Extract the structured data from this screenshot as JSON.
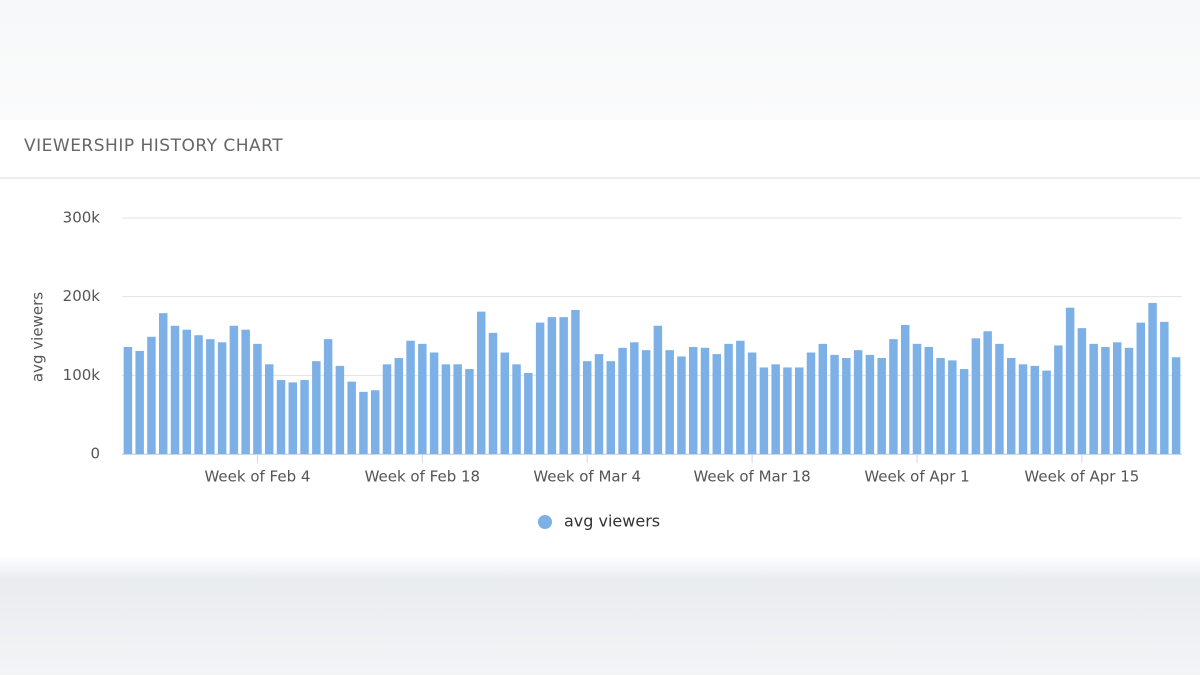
{
  "chart_data": {
    "type": "bar",
    "title": "VIEWERSHIP HISTORY CHART",
    "y_label": "avg viewers",
    "categories": [
      null,
      null,
      null,
      null,
      null,
      null,
      null,
      null,
      null,
      null,
      null,
      "Week of Feb 4",
      null,
      null,
      null,
      null,
      null,
      null,
      null,
      null,
      null,
      null,
      null,
      null,
      null,
      "Week of Feb 18",
      null,
      null,
      null,
      null,
      null,
      null,
      null,
      null,
      null,
      null,
      null,
      null,
      null,
      "Week of Mar 4",
      null,
      null,
      null,
      null,
      null,
      null,
      null,
      null,
      null,
      null,
      null,
      null,
      null,
      "Week of Mar 18",
      null,
      null,
      null,
      null,
      null,
      null,
      null,
      null,
      null,
      null,
      null,
      null,
      null,
      "Week of Apr 1",
      null,
      null,
      null,
      null,
      null,
      null,
      null,
      null,
      null,
      null,
      null,
      null,
      null,
      "Week of Apr 15",
      null,
      null,
      null,
      null,
      null,
      null,
      null,
      null
    ],
    "series": [
      {
        "name": "avg viewers",
        "color": "#7cb0e6",
        "values": [
          136000,
          131000,
          149000,
          179000,
          163000,
          158000,
          151000,
          146000,
          142000,
          163000,
          158000,
          140000,
          114000,
          94000,
          91000,
          94000,
          118000,
          146000,
          112000,
          92000,
          79000,
          81000,
          114000,
          122000,
          144000,
          140000,
          129000,
          114000,
          114000,
          108000,
          181000,
          154000,
          129000,
          114000,
          103000,
          167000,
          174000,
          174000,
          183000,
          118000,
          127000,
          118000,
          135000,
          142000,
          132000,
          163000,
          132000,
          124000,
          136000,
          135000,
          127000,
          140000,
          144000,
          129000,
          110000,
          114000,
          110000,
          110000,
          129000,
          140000,
          126000,
          122000,
          132000,
          126000,
          122000,
          146000,
          164000,
          140000,
          136000,
          122000,
          119000,
          108000,
          147000,
          156000,
          140000,
          122000,
          114000,
          112000,
          106000,
          138000,
          186000,
          160000,
          140000,
          136000,
          142000,
          135000,
          167000,
          192000,
          168000,
          123000
        ]
      }
    ],
    "ylim": [
      0,
      300000
    ],
    "yticks": [
      0,
      {
        "value": 100000,
        "label": "100k"
      },
      {
        "value": 200000,
        "label": "200k"
      },
      {
        "value": 300000,
        "label": "300k"
      }
    ],
    "grid": true
  }
}
